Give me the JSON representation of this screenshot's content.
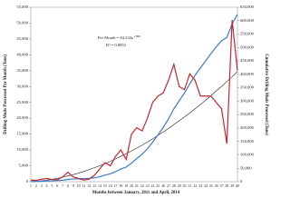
{
  "chart_data": {
    "type": "line",
    "x_label": "Months between January, 2011 and April, 2014",
    "y_label": "Drilling Muds Processed Per Month (Tons)",
    "y2_label": "Cumulative Drilling Muds Processed (Tons)",
    "annotation_equation": "Per Month = 84.334x",
    "annotation_exponent": "1.809",
    "annotation_r2": "R² = 0.8853",
    "categories": [
      1,
      2,
      3,
      4,
      5,
      6,
      7,
      8,
      9,
      10,
      11,
      12,
      13,
      14,
      15,
      16,
      17,
      18,
      19,
      20,
      21,
      22,
      23,
      24,
      25,
      26,
      27,
      28,
      29,
      30,
      31,
      32,
      33,
      34,
      35,
      36,
      37,
      38,
      39,
      40
    ],
    "ylim": [
      0,
      55000
    ],
    "yticks": [
      {
        "value": 0,
        "label": "0"
      },
      {
        "value": 5000,
        "label": "5,000"
      },
      {
        "value": 10000,
        "label": "10,000"
      },
      {
        "value": 15000,
        "label": "15,000"
      },
      {
        "value": 20000,
        "label": "20,000"
      },
      {
        "value": 25000,
        "label": "25,000"
      },
      {
        "value": 30000,
        "label": "30,000"
      },
      {
        "value": 35000,
        "label": "35,000"
      },
      {
        "value": 40000,
        "label": "40,000"
      },
      {
        "value": 45000,
        "label": "45,000"
      },
      {
        "value": 50000,
        "label": "50,000"
      },
      {
        "value": 55000,
        "label": "55,000"
      }
    ],
    "y2lim": [
      0,
      650000
    ],
    "y2ticks": [
      {
        "value": 0,
        "label": "0"
      },
      {
        "value": 50000,
        "label": "50,000"
      },
      {
        "value": 100000,
        "label": "100,000"
      },
      {
        "value": 150000,
        "label": "150,000"
      },
      {
        "value": 200000,
        "label": "200,000"
      },
      {
        "value": 250000,
        "label": "250,000"
      },
      {
        "value": 300000,
        "label": "300,000"
      },
      {
        "value": 350000,
        "label": "350,000"
      },
      {
        "value": 400000,
        "label": "400,000"
      },
      {
        "value": 450000,
        "label": "450,000"
      },
      {
        "value": 500000,
        "label": "500,000"
      },
      {
        "value": 550000,
        "label": "550,000"
      },
      {
        "value": 600000,
        "label": "600,000"
      },
      {
        "value": 650000,
        "label": "650,000"
      }
    ],
    "series": [
      {
        "color": "#c0282d",
        "values": [
          500,
          400,
          800,
          1000,
          700,
          600,
          1500,
          3000,
          1500,
          1000,
          500,
          800,
          2000,
          4000,
          6000,
          5000,
          8000,
          10000,
          7000,
          15000,
          17000,
          16000,
          20000,
          25000,
          27000,
          28000,
          32000,
          37000,
          30000,
          29000,
          34000,
          32000,
          27000,
          27000,
          27000,
          25000,
          23000,
          12000,
          51000,
          35000
        ]
      },
      {
        "color": "#3b7ec8",
        "axis": "y2",
        "values": [
          500,
          900,
          1700,
          2700,
          3400,
          4000,
          5500,
          8500,
          10000,
          11000,
          11500,
          12300,
          14300,
          18300,
          24300,
          29300,
          37300,
          47300,
          54300,
          69300,
          86300,
          102300,
          122300,
          147300,
          174300,
          202300,
          234300,
          271300,
          301300,
          330300,
          364300,
          396300,
          423300,
          450300,
          477300,
          502300,
          525300,
          537300,
          588300,
          623300
        ]
      },
      {
        "color": "#222222",
        "values": [
          40,
          140,
          300,
          500,
          750,
          1050,
          1400,
          1800,
          2200,
          2700,
          3200,
          3800,
          4400,
          5000,
          5700,
          6400,
          7200,
          8000,
          8800,
          9700,
          10600,
          11500,
          12500,
          13500,
          14600,
          15700,
          16800,
          18000,
          19200,
          20400,
          21700,
          23000,
          24300,
          25700,
          27100,
          28600,
          30000,
          31600,
          33100,
          34700
        ]
      }
    ]
  }
}
